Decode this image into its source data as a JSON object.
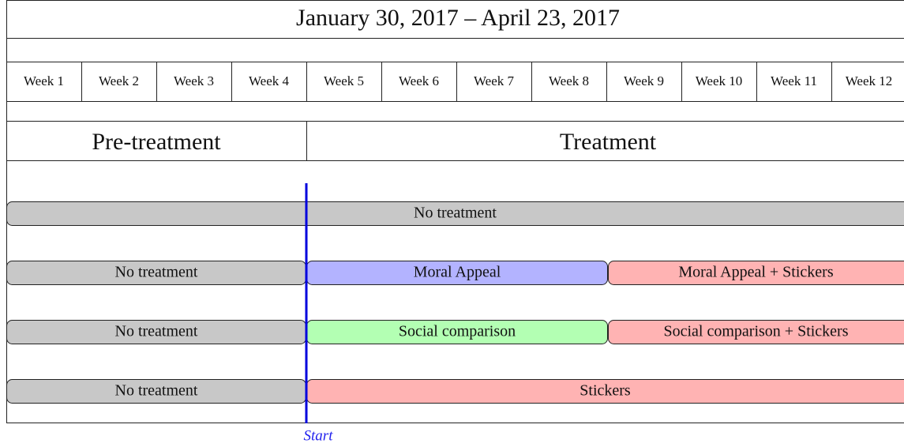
{
  "header": {
    "title": "January 30, 2017 – April 23, 2017"
  },
  "weeks": [
    "Week 1",
    "Week 2",
    "Week 3",
    "Week 4",
    "Week 5",
    "Week 6",
    "Week 7",
    "Week 8",
    "Week 9",
    "Week 10",
    "Week 11",
    "Week 12"
  ],
  "phases": [
    "Pre-treatment",
    "Treatment"
  ],
  "rows": [
    {
      "segments": [
        {
          "label": "No treatment",
          "color": "#c8c8c8"
        }
      ]
    },
    {
      "segments": [
        {
          "label": "No treatment",
          "color": "#c8c8c8"
        },
        {
          "label": "Moral Appeal",
          "color": "#b3b3ff"
        },
        {
          "label": "Moral Appeal + Stickers",
          "color": "#ffb3b3"
        }
      ]
    },
    {
      "segments": [
        {
          "label": "No treatment",
          "color": "#c8c8c8"
        },
        {
          "label": "Social comparison",
          "color": "#b3ffb3"
        },
        {
          "label": "Social comparison + Stickers",
          "color": "#ffb3b3"
        }
      ]
    },
    {
      "segments": [
        {
          "label": "No treatment",
          "color": "#c8c8c8"
        },
        {
          "label": "Stickers",
          "color": "#ffb3b3"
        }
      ]
    }
  ],
  "marker": {
    "label": "Start"
  }
}
